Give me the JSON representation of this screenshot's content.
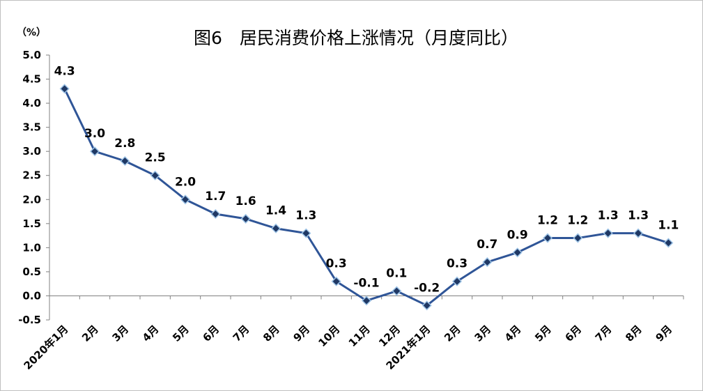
{
  "chart_data": {
    "type": "line",
    "title": "图6　居民消费价格上涨情况（月度同比）",
    "unit_label": "（%）",
    "categories": [
      "2020年1月",
      "2月",
      "3月",
      "4月",
      "5月",
      "6月",
      "7月",
      "8月",
      "9月",
      "10月",
      "11月",
      "12月",
      "2021年1月",
      "2月",
      "3月",
      "4月",
      "5月",
      "6月",
      "7月",
      "8月",
      "9月"
    ],
    "values": [
      4.3,
      3.0,
      2.8,
      2.5,
      2.0,
      1.7,
      1.6,
      1.4,
      1.3,
      0.3,
      -0.1,
      0.1,
      -0.2,
      0.3,
      0.7,
      0.9,
      1.2,
      1.2,
      1.3,
      1.3,
      1.1
    ],
    "data_labels": [
      "4.3",
      "3.0",
      "2.8",
      "2.5",
      "2.0",
      "1.7",
      "1.6",
      "1.4",
      "1.3",
      "0.3",
      "-0.1",
      "0.1",
      "-0.2",
      "0.3",
      "0.7",
      "0.9",
      "1.2",
      "1.2",
      "1.3",
      "1.3",
      "1.1"
    ],
    "yticks": [
      "5.0",
      "4.5",
      "4.0",
      "3.5",
      "3.0",
      "2.5",
      "2.0",
      "1.5",
      "1.0",
      "0.5",
      "0.0",
      "-0.5"
    ],
    "ylim": [
      -0.5,
      5.0
    ],
    "grid": false,
    "legend": "none",
    "line_color": "#2f5597",
    "marker_fill": "#1f3864",
    "marker_edge": "#9dc3e6"
  }
}
